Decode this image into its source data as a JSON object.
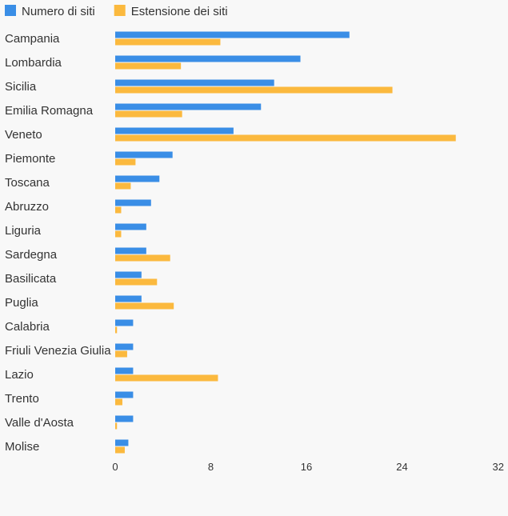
{
  "chart_data": {
    "type": "bar",
    "orientation": "horizontal",
    "categories": [
      "Campania",
      "Lombardia",
      "Sicilia",
      "Emilia Romagna",
      "Veneto",
      "Piemonte",
      "Toscana",
      "Abruzzo",
      "Liguria",
      "Sardegna",
      "Basilicata",
      "Puglia",
      "Calabria",
      "Friuli Venezia Giulia",
      "Lazio",
      "Trento",
      "Valle d'Aosta",
      "Molise"
    ],
    "series": [
      {
        "name": "Numero di siti",
        "color": "#3a8ee6",
        "values": [
          19.6,
          15.5,
          13.3,
          12.2,
          9.9,
          4.8,
          3.7,
          3.0,
          2.6,
          2.6,
          2.2,
          2.2,
          1.5,
          1.5,
          1.5,
          1.5,
          1.5,
          1.1
        ]
      },
      {
        "name": "Estensione dei siti",
        "color": "#fbb93e",
        "values": [
          8.8,
          5.5,
          23.2,
          5.6,
          28.5,
          1.7,
          1.3,
          0.5,
          0.5,
          4.6,
          3.5,
          4.9,
          0.15,
          1.0,
          8.6,
          0.6,
          0.15,
          0.8
        ]
      }
    ],
    "xlim": [
      0,
      32
    ],
    "xticks": [
      0,
      8,
      16,
      24,
      32
    ],
    "legend_position": "top-left",
    "grid": false
  }
}
